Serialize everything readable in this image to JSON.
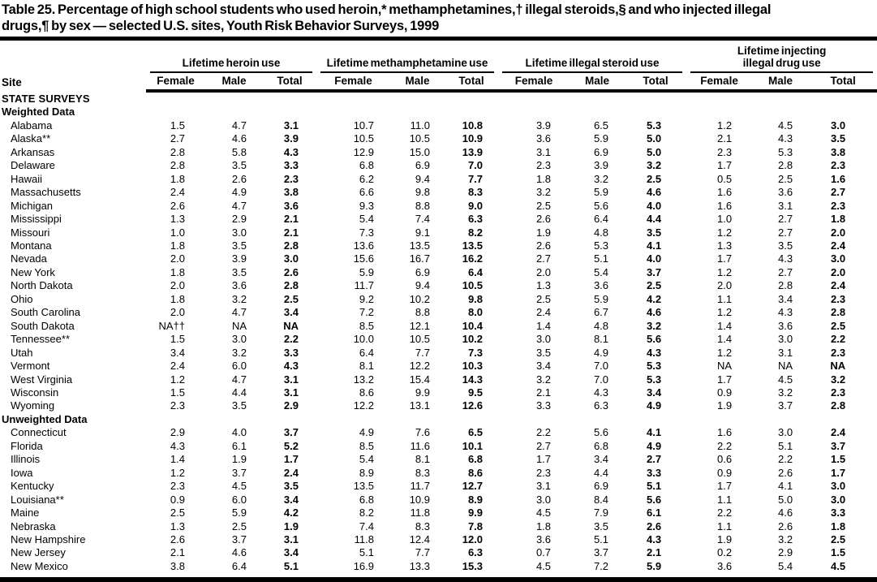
{
  "title": "Table 25. Percentage of high school students who used heroin,* methamphetamines,† illegal steroids,§ and who injected illegal\ndrugs,¶ by sex — selected U.S. sites, Youth Risk Behavior Surveys, 1999",
  "table": {
    "site_header": "Site",
    "groups": [
      {
        "label": "Lifetime heroin use"
      },
      {
        "label": "Lifetime methamphetamine use"
      },
      {
        "label": "Lifetime injecting\nillegal drug use",
        "note": "wraps-two-lines"
      },
      {
        "label_steroid": "Lifetime illegal steroid use"
      }
    ],
    "group_labels": {
      "heroin": "Lifetime heroin use",
      "meth": "Lifetime methamphetamine use",
      "steroid": "Lifetime illegal steroid use",
      "inject": "Lifetime injecting\nillegal drug use"
    },
    "sub_headers": [
      "Female",
      "Male",
      "Total"
    ],
    "sections": [
      {
        "label": "STATE SURVEYS",
        "caps": true,
        "rows": []
      },
      {
        "label": "Weighted Data",
        "caps": false,
        "rows": [
          {
            "site": "Alabama",
            "values": [
              "1.5",
              "4.7",
              "3.1",
              "10.7",
              "11.0",
              "10.8",
              "3.9",
              "6.5",
              "5.3",
              "1.2",
              "4.5",
              "3.0"
            ]
          },
          {
            "site": "Alaska**",
            "values": [
              "2.7",
              "4.6",
              "3.9",
              "10.5",
              "10.5",
              "10.9",
              "3.6",
              "5.9",
              "5.0",
              "2.1",
              "4.3",
              "3.5"
            ]
          },
          {
            "site": "Arkansas",
            "values": [
              "2.8",
              "5.8",
              "4.3",
              "12.9",
              "15.0",
              "13.9",
              "3.1",
              "6.9",
              "5.0",
              "2.3",
              "5.3",
              "3.8"
            ]
          },
          {
            "site": "Delaware",
            "values": [
              "2.8",
              "3.5",
              "3.3",
              "6.8",
              "6.9",
              "7.0",
              "2.3",
              "3.9",
              "3.2",
              "1.7",
              "2.8",
              "2.3"
            ]
          },
          {
            "site": "Hawaii",
            "values": [
              "1.8",
              "2.6",
              "2.3",
              "6.2",
              "9.4",
              "7.7",
              "1.8",
              "3.2",
              "2.5",
              "0.5",
              "2.5",
              "1.6"
            ]
          },
          {
            "site": "Massachusetts",
            "values": [
              "2.4",
              "4.9",
              "3.8",
              "6.6",
              "9.8",
              "8.3",
              "3.2",
              "5.9",
              "4.6",
              "1.6",
              "3.6",
              "2.7"
            ]
          },
          {
            "site": "Michigan",
            "values": [
              "2.6",
              "4.7",
              "3.6",
              "9.3",
              "8.8",
              "9.0",
              "2.5",
              "5.6",
              "4.0",
              "1.6",
              "3.1",
              "2.3"
            ]
          },
          {
            "site": "Mississippi",
            "values": [
              "1.3",
              "2.9",
              "2.1",
              "5.4",
              "7.4",
              "6.3",
              "2.6",
              "6.4",
              "4.4",
              "1.0",
              "2.7",
              "1.8"
            ]
          },
          {
            "site": "Missouri",
            "values": [
              "1.0",
              "3.0",
              "2.1",
              "7.3",
              "9.1",
              "8.2",
              "1.9",
              "4.8",
              "3.5",
              "1.2",
              "2.7",
              "2.0"
            ]
          },
          {
            "site": "Montana",
            "values": [
              "1.8",
              "3.5",
              "2.8",
              "13.6",
              "13.5",
              "13.5",
              "2.6",
              "5.3",
              "4.1",
              "1.3",
              "3.5",
              "2.4"
            ]
          },
          {
            "site": "Nevada",
            "values": [
              "2.0",
              "3.9",
              "3.0",
              "15.6",
              "16.7",
              "16.2",
              "2.7",
              "5.1",
              "4.0",
              "1.7",
              "4.3",
              "3.0"
            ]
          },
          {
            "site": "New York",
            "values": [
              "1.8",
              "3.5",
              "2.6",
              "5.9",
              "6.9",
              "6.4",
              "2.0",
              "5.4",
              "3.7",
              "1.2",
              "2.7",
              "2.0"
            ]
          },
          {
            "site": "North Dakota",
            "values": [
              "2.0",
              "3.6",
              "2.8",
              "11.7",
              "9.4",
              "10.5",
              "1.3",
              "3.6",
              "2.5",
              "2.0",
              "2.8",
              "2.4"
            ]
          },
          {
            "site": "Ohio",
            "values": [
              "1.8",
              "3.2",
              "2.5",
              "9.2",
              "10.2",
              "9.8",
              "2.5",
              "5.9",
              "4.2",
              "1.1",
              "3.4",
              "2.3"
            ]
          },
          {
            "site": "South Carolina",
            "values": [
              "2.0",
              "4.7",
              "3.4",
              "7.2",
              "8.8",
              "8.0",
              "2.4",
              "6.7",
              "4.6",
              "1.2",
              "4.3",
              "2.8"
            ]
          },
          {
            "site": "South Dakota",
            "values": [
              "NA††",
              "NA",
              "NA",
              "8.5",
              "12.1",
              "10.4",
              "1.4",
              "4.8",
              "3.2",
              "1.4",
              "3.6",
              "2.5"
            ]
          },
          {
            "site": "Tennessee**",
            "values": [
              "1.5",
              "3.0",
              "2.2",
              "10.0",
              "10.5",
              "10.2",
              "3.0",
              "8.1",
              "5.6",
              "1.4",
              "3.0",
              "2.2"
            ]
          },
          {
            "site": "Utah",
            "values": [
              "3.4",
              "3.2",
              "3.3",
              "6.4",
              "7.7",
              "7.3",
              "3.5",
              "4.9",
              "4.3",
              "1.2",
              "3.1",
              "2.3"
            ]
          },
          {
            "site": "Vermont",
            "values": [
              "2.4",
              "6.0",
              "4.3",
              "8.1",
              "12.2",
              "10.3",
              "3.4",
              "7.0",
              "5.3",
              "NA",
              "NA",
              "NA"
            ]
          },
          {
            "site": "West Virginia",
            "values": [
              "1.2",
              "4.7",
              "3.1",
              "13.2",
              "15.4",
              "14.3",
              "3.2",
              "7.0",
              "5.3",
              "1.7",
              "4.5",
              "3.2"
            ]
          },
          {
            "site": "Wisconsin",
            "values": [
              "1.5",
              "4.4",
              "3.1",
              "8.6",
              "9.9",
              "9.5",
              "2.1",
              "4.3",
              "3.4",
              "0.9",
              "3.2",
              "2.3"
            ]
          },
          {
            "site": "Wyoming",
            "values": [
              "2.3",
              "3.5",
              "2.9",
              "12.2",
              "13.1",
              "12.6",
              "3.3",
              "6.3",
              "4.9",
              "1.9",
              "3.7",
              "2.8"
            ]
          }
        ]
      },
      {
        "label": "Unweighted Data",
        "caps": false,
        "rows": [
          {
            "site": "Connecticut",
            "values": [
              "2.9",
              "4.0",
              "3.7",
              "4.9",
              "7.6",
              "6.5",
              "2.2",
              "5.6",
              "4.1",
              "1.6",
              "3.0",
              "2.4"
            ]
          },
          {
            "site": "Florida",
            "values": [
              "4.3",
              "6.1",
              "5.2",
              "8.5",
              "11.6",
              "10.1",
              "2.7",
              "6.8",
              "4.9",
              "2.2",
              "5.1",
              "3.7"
            ]
          },
          {
            "site": "Illinois",
            "values": [
              "1.4",
              "1.9",
              "1.7",
              "5.4",
              "8.1",
              "6.8",
              "1.7",
              "3.4",
              "2.7",
              "0.6",
              "2.2",
              "1.5"
            ]
          },
          {
            "site": "Iowa",
            "values": [
              "1.2",
              "3.7",
              "2.4",
              "8.9",
              "8.3",
              "8.6",
              "2.3",
              "4.4",
              "3.3",
              "0.9",
              "2.6",
              "1.7"
            ]
          },
          {
            "site": "Kentucky",
            "values": [
              "2.3",
              "4.5",
              "3.5",
              "13.5",
              "11.7",
              "12.7",
              "3.1",
              "6.9",
              "5.1",
              "1.7",
              "4.1",
              "3.0"
            ]
          },
          {
            "site": "Louisiana**",
            "values": [
              "0.9",
              "6.0",
              "3.4",
              "6.8",
              "10.9",
              "8.9",
              "3.0",
              "8.4",
              "5.6",
              "1.1",
              "5.0",
              "3.0"
            ]
          },
          {
            "site": "Maine",
            "values": [
              "2.5",
              "5.9",
              "4.2",
              "8.2",
              "11.8",
              "9.9",
              "4.5",
              "7.9",
              "6.1",
              "2.2",
              "4.6",
              "3.3"
            ]
          },
          {
            "site": "Nebraska",
            "values": [
              "1.3",
              "2.5",
              "1.9",
              "7.4",
              "8.3",
              "7.8",
              "1.8",
              "3.5",
              "2.6",
              "1.1",
              "2.6",
              "1.8"
            ]
          },
          {
            "site": "New Hampshire",
            "values": [
              "2.6",
              "3.7",
              "3.1",
              "11.8",
              "12.4",
              "12.0",
              "3.6",
              "5.1",
              "4.3",
              "1.9",
              "3.2",
              "2.5"
            ]
          },
          {
            "site": "New Jersey",
            "values": [
              "2.1",
              "4.6",
              "3.4",
              "5.1",
              "7.7",
              "6.3",
              "0.7",
              "3.7",
              "2.1",
              "0.2",
              "2.9",
              "1.5"
            ]
          },
          {
            "site": "New Mexico",
            "values": [
              "3.8",
              "6.4",
              "5.1",
              "16.9",
              "13.3",
              "15.3",
              "4.5",
              "7.2",
              "5.9",
              "3.6",
              "5.4",
              "4.5"
            ]
          }
        ]
      }
    ]
  }
}
